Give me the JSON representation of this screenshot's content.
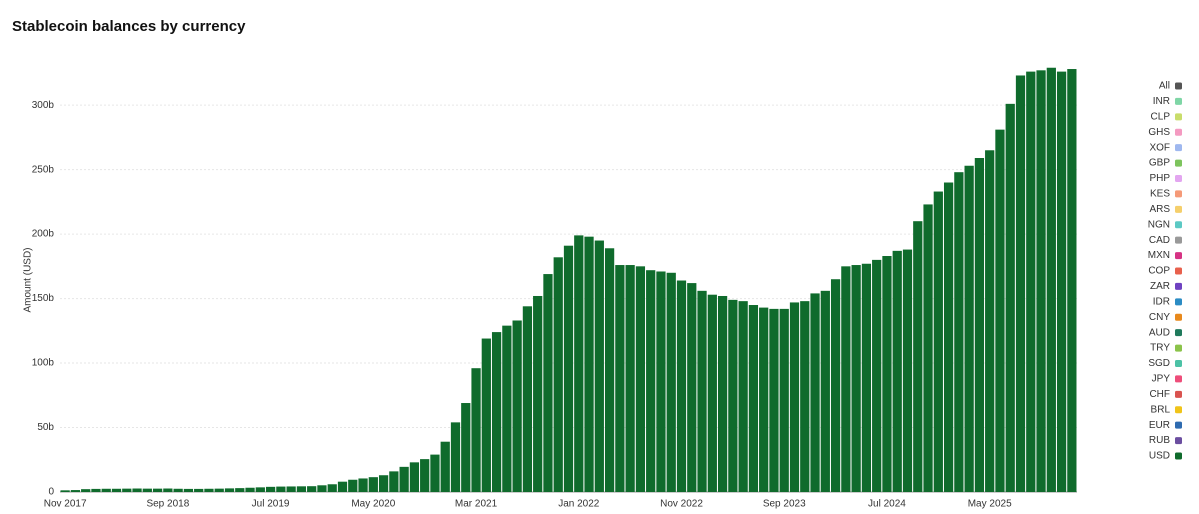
{
  "chart_data": {
    "type": "bar",
    "title": "Stablecoin balances by currency",
    "y_label": "Amount (USD)",
    "categories": [
      "Nov 2017",
      null,
      null,
      null,
      null,
      null,
      null,
      null,
      null,
      null,
      "Sep 2018",
      null,
      null,
      null,
      null,
      null,
      null,
      null,
      null,
      null,
      "Jul 2019",
      null,
      null,
      null,
      null,
      null,
      null,
      null,
      null,
      null,
      "May 2020",
      null,
      null,
      null,
      null,
      null,
      null,
      null,
      null,
      null,
      "Mar 2021",
      null,
      null,
      null,
      null,
      null,
      null,
      null,
      null,
      null,
      "Jan 2022",
      null,
      null,
      null,
      null,
      null,
      null,
      null,
      null,
      null,
      "Nov 2022",
      null,
      null,
      null,
      null,
      null,
      null,
      null,
      null,
      null,
      "Sep 2023",
      null,
      null,
      null,
      null,
      null,
      null,
      null,
      null,
      null,
      "Jul 2024",
      null,
      null,
      null,
      null,
      null,
      null,
      null,
      null,
      null,
      "May 2025",
      null,
      null,
      null,
      null,
      null,
      null,
      null,
      null
    ],
    "series": [
      {
        "name": "USD",
        "color": "#0f6b2c",
        "values": [
          1.3,
          1.5,
          2.2,
          2.4,
          2.5,
          2.5,
          2.6,
          2.7,
          2.6,
          2.6,
          2.7,
          2.5,
          2.4,
          2.4,
          2.5,
          2.6,
          2.8,
          3.0,
          3.3,
          3.6,
          4.0,
          4.2,
          4.3,
          4.4,
          4.5,
          5.2,
          6,
          8,
          9.5,
          10.5,
          11.5,
          13,
          16,
          19.5,
          23,
          25.5,
          29,
          39,
          54,
          69,
          96,
          119,
          124,
          129,
          133,
          144,
          152,
          169,
          182,
          191,
          199,
          198,
          195,
          189,
          176,
          176,
          175,
          172,
          171,
          170,
          164,
          162,
          156,
          153,
          152,
          149,
          148,
          145,
          143,
          142,
          142,
          147,
          148,
          154,
          156,
          165,
          175,
          176,
          177,
          180,
          183,
          187,
          188,
          210,
          223,
          233,
          240,
          248,
          253,
          259,
          265,
          281,
          301,
          323,
          326,
          327,
          329,
          326,
          328
        ]
      }
    ],
    "legend": [
      {
        "name": "All",
        "color": "#555555"
      },
      {
        "name": "INR",
        "color": "#7fd6a6"
      },
      {
        "name": "CLP",
        "color": "#c9dd6b"
      },
      {
        "name": "GHS",
        "color": "#f49ac1"
      },
      {
        "name": "XOF",
        "color": "#9fb8ef"
      },
      {
        "name": "GBP",
        "color": "#7dc45d"
      },
      {
        "name": "PHP",
        "color": "#e3a6f0"
      },
      {
        "name": "KES",
        "color": "#f59a78"
      },
      {
        "name": "ARS",
        "color": "#f5cf6b"
      },
      {
        "name": "NGN",
        "color": "#5cc9c4"
      },
      {
        "name": "CAD",
        "color": "#999999"
      },
      {
        "name": "MXN",
        "color": "#d63384"
      },
      {
        "name": "COP",
        "color": "#e8604c"
      },
      {
        "name": "ZAR",
        "color": "#6f42c1"
      },
      {
        "name": "IDR",
        "color": "#2b8cc4"
      },
      {
        "name": "CNY",
        "color": "#e8891c"
      },
      {
        "name": "AUD",
        "color": "#1f7a5c"
      },
      {
        "name": "TRY",
        "color": "#8bc34a"
      },
      {
        "name": "SGD",
        "color": "#4cc2a6"
      },
      {
        "name": "JPY",
        "color": "#ee4d7a"
      },
      {
        "name": "CHF",
        "color": "#d9534f"
      },
      {
        "name": "BRL",
        "color": "#f0c419"
      },
      {
        "name": "EUR",
        "color": "#2e6bb0"
      },
      {
        "name": "RUB",
        "color": "#6b4ea0"
      }
    ],
    "ylim": [
      0,
      335
    ],
    "yticks": [
      0,
      {
        "value": 50,
        "label": "50b"
      },
      {
        "value": 100,
        "label": "100b"
      },
      {
        "value": 150,
        "label": "150b"
      },
      {
        "value": 200,
        "label": "200b"
      },
      {
        "value": 250,
        "label": "250b"
      },
      {
        "value": 300,
        "label": "300b"
      }
    ],
    "grid": true
  }
}
